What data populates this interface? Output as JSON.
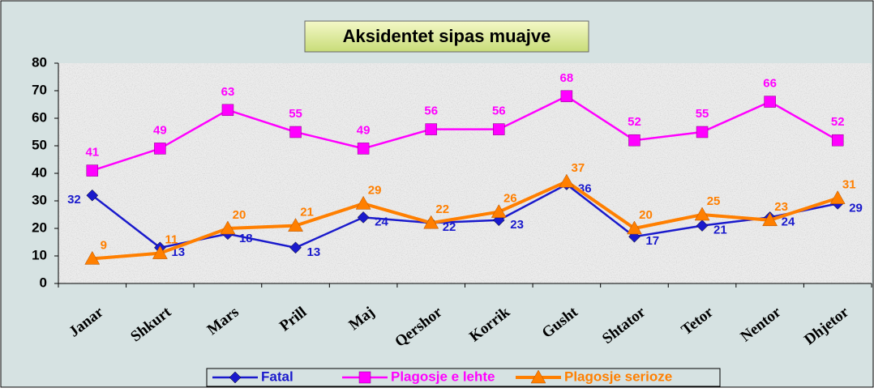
{
  "chart_data": {
    "type": "line",
    "title": "Aksidentet sipas muajve",
    "categories": [
      "Janar",
      "Shkurt",
      "Mars",
      "Prill",
      "Maj",
      "Qershor",
      "Korrik",
      "Gusht",
      "Shtator",
      "Tetor",
      "Nentor",
      "Dhjetor"
    ],
    "series": [
      {
        "name": "Fatal",
        "color": "#1a1acc",
        "marker": "diamond",
        "values": [
          32,
          13,
          18,
          13,
          24,
          22,
          23,
          36,
          17,
          21,
          24,
          29
        ]
      },
      {
        "name": "Plagosje e lehte",
        "color": "#ff00ff",
        "marker": "square",
        "values": [
          41,
          49,
          63,
          55,
          49,
          56,
          56,
          68,
          52,
          55,
          66,
          52
        ]
      },
      {
        "name": "Plagosje serioze",
        "color": "#ff7f00",
        "marker": "triangle",
        "values": [
          9,
          11,
          20,
          21,
          29,
          22,
          26,
          37,
          20,
          25,
          23,
          31
        ]
      }
    ],
    "ylim": [
      0,
      80
    ],
    "yticks": [
      0,
      10,
      20,
      30,
      40,
      50,
      60,
      70,
      80
    ],
    "legend": "bottom"
  }
}
